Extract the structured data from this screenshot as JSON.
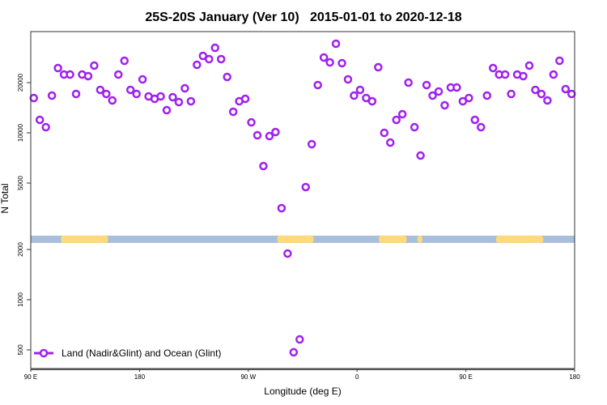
{
  "chart_data": {
    "type": "scatter",
    "title": "25S-20S January (Ver 10)   2015-01-01 to 2020-12-18",
    "xlabel": "Longitude (deg E)",
    "ylabel": "N Total",
    "xscale": "linear (unwrapped longitude, deg)",
    "yscale": "log",
    "xlim": [
      90,
      540
    ],
    "ylim": [
      390,
      42000
    ],
    "x_ticks": [
      {
        "value": 90,
        "label": "90 E"
      },
      {
        "value": 180,
        "label": "180"
      },
      {
        "value": 270,
        "label": "90 W"
      },
      {
        "value": 360,
        "label": "0"
      },
      {
        "value": 450,
        "label": "90 E"
      },
      {
        "value": 540,
        "label": "180"
      }
    ],
    "y_ticks": [
      {
        "value": 500,
        "label": "500"
      },
      {
        "value": 1000,
        "label": "1000"
      },
      {
        "value": 2000,
        "label": "2000"
      },
      {
        "value": 5000,
        "label": "5000"
      },
      {
        "value": 10000,
        "label": "10000"
      },
      {
        "value": 20000,
        "label": "20000"
      }
    ],
    "grid": false,
    "legend": {
      "position": "bottom-left",
      "entries": [
        "Land (Nadir&Glint) and Ocean (Glint)"
      ]
    },
    "series": [
      {
        "name": "Land (Nadir&Glint) and Ocean (Glint)",
        "color": "#a020f0",
        "marker": "open-circle",
        "x_start": 92.5,
        "x_step": 5,
        "values": [
          16170,
          11960,
          10810,
          16720,
          24450,
          22360,
          22360,
          17100,
          22360,
          21870,
          25290,
          18090,
          17100,
          15640,
          22360,
          27040,
          18090,
          17100,
          20910,
          16530,
          15990,
          16530,
          13670,
          16350,
          15290,
          18490,
          15460,
          25570,
          28920,
          27650,
          32330,
          27650,
          21630,
          13370,
          15460,
          15990,
          11560,
          9670,
          6320,
          9560,
          10110,
          3536,
          1890,
          484,
          578,
          4730,
          8550,
          19340,
          28280,
          26440,
          34200,
          26160,
          20910,
          16720,
          18090,
          16170,
          15460,
          24730,
          10000,
          8740,
          11960,
          12930,
          20000,
          10810,
          7310,
          19340,
          16720,
          17690,
          14620,
          18700,
          18700,
          15460,
          16170,
          11960,
          10810,
          16720,
          24450,
          22360,
          22360,
          17100,
          22360,
          21870,
          25290,
          18090,
          17100,
          15640,
          22360,
          27040,
          18290,
          17100
        ]
      }
    ],
    "land_sea_strip": {
      "y_range": [
        2190,
        2420
      ],
      "ocean_color": "#a8bedb",
      "land_color": "#ffd97a",
      "land_segments": [
        [
          115,
          154
        ],
        [
          294,
          324
        ],
        [
          378,
          401
        ],
        [
          410,
          414
        ],
        [
          475,
          514
        ]
      ]
    }
  }
}
